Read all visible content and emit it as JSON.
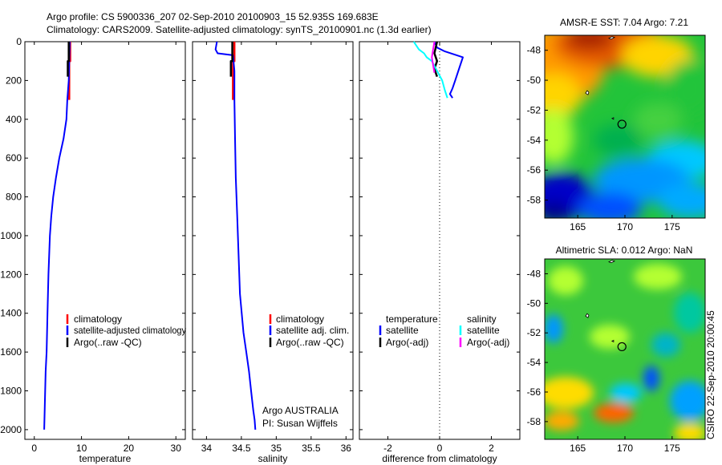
{
  "header": {
    "line1": "Argo profile: CS 5900336_207 02-Sep-2010 20100903_15 52.935S 169.683E",
    "line2": "Climatology: CARS2009. Satellite-adjusted climatology: synTS_20100901.nc (1.3d earlier)"
  },
  "credit": {
    "side_label": "CSIRO 22-Sep-2010 20:00:45",
    "argo_label": "Argo AUSTRALIA",
    "pi_label": "PI: Susan Wijffels"
  },
  "colors": {
    "climatology": "#ff0000",
    "satellite": "#0000ff",
    "argo": "#000000",
    "sat_salinity": "#00ffff",
    "argo_salinity": "#ff00ff"
  },
  "chart_data": [
    {
      "type": "line",
      "title": "",
      "xlabel": "temperature",
      "ylabel": "",
      "xlim": [
        -2,
        32
      ],
      "ylim": [
        2050,
        0
      ],
      "xticks": [
        0,
        10,
        20,
        30
      ],
      "xtick_labels": [
        "0",
        "10",
        "20",
        "30"
      ],
      "yticks": [
        0,
        200,
        400,
        600,
        800,
        1000,
        1200,
        1400,
        1600,
        1800,
        2000
      ],
      "ytick_labels": [
        "0",
        "200",
        "400",
        "600",
        "800",
        "1000",
        "1200",
        "1400",
        "1600",
        "1800",
        "2000"
      ],
      "legend": [
        "climatology",
        "satellite-adjusted climatology",
        "Argo(..raw -QC)"
      ],
      "series": [
        {
          "name": "climatology",
          "x": [
            7.6,
            7.6,
            7.4,
            7.4
          ],
          "y": [
            0,
            100,
            100,
            300
          ]
        },
        {
          "name": "satellite-adjusted climatology",
          "x": [
            7.5,
            7.3,
            7.0,
            6.8,
            6.2,
            5.3,
            4.6,
            4.0,
            3.6,
            3.3,
            3.0,
            2.8,
            2.6,
            2.4,
            2.3,
            2.2,
            2.1
          ],
          "y": [
            0,
            200,
            300,
            400,
            500,
            600,
            700,
            800,
            900,
            1000,
            1200,
            1400,
            1600,
            1700,
            1800,
            1900,
            2000
          ]
        },
        {
          "name": "Argo(..raw -QC)",
          "x": [
            7.3,
            7.3,
            7.1,
            7.1
          ],
          "y": [
            0,
            100,
            100,
            180
          ]
        }
      ]
    },
    {
      "type": "line",
      "title": "",
      "xlabel": "salinity",
      "ylabel": "",
      "xlim": [
        33.8,
        36.1
      ],
      "ylim": [
        2050,
        0
      ],
      "xticks": [
        34,
        34.5,
        35,
        35.5,
        36
      ],
      "xtick_labels": [
        "34",
        "34.5",
        "35",
        "35.5",
        "36"
      ],
      "legend": [
        "climatology",
        "satellite adj. clim.",
        "Argo(..raw -QC)"
      ],
      "series": [
        {
          "name": "climatology",
          "x": [
            34.4,
            34.4,
            34.38,
            34.38
          ],
          "y": [
            0,
            100,
            100,
            300
          ]
        },
        {
          "name": "satellite adj. clim.",
          "x": [
            34.15,
            34.13,
            34.16,
            34.38,
            34.4,
            34.4,
            34.41,
            34.42,
            34.44,
            34.46,
            34.48,
            34.53,
            34.57,
            34.61,
            34.64,
            34.67,
            34.69,
            34.7
          ],
          "y": [
            0,
            40,
            60,
            70,
            150,
            300,
            500,
            700,
            900,
            1100,
            1300,
            1500,
            1600,
            1700,
            1800,
            1900,
            1950,
            2000
          ]
        },
        {
          "name": "Argo(..raw -QC)",
          "x": [
            34.37,
            34.37,
            34.35,
            34.35
          ],
          "y": [
            0,
            100,
            100,
            180
          ]
        }
      ]
    },
    {
      "type": "line",
      "title": "",
      "xlabel": "difference from climatology",
      "ylabel": "",
      "xlim": [
        -3.1,
        3.1
      ],
      "ylim": [
        2050,
        0
      ],
      "xticks": [
        -2,
        0,
        2
      ],
      "xtick_labels": [
        "-2",
        "0",
        "2"
      ],
      "legend": [
        "temperature",
        "satellite",
        "Argo(-adj)",
        "salinity",
        "satellite",
        "Argo(-adj)"
      ],
      "series": [
        {
          "name": "temperature satellite",
          "x": [
            -0.2,
            -0.1,
            0.2,
            0.9,
            0.8,
            0.7,
            0.6,
            0.5,
            0.4,
            0.5
          ],
          "y": [
            0,
            30,
            50,
            80,
            120,
            160,
            200,
            240,
            270,
            290
          ]
        },
        {
          "name": "temperature Argo(-adj)",
          "x": [
            -0.1,
            -0.2,
            -0.1,
            -0.2,
            -0.1
          ],
          "y": [
            0,
            60,
            100,
            140,
            180
          ]
        },
        {
          "name": "salinity satellite",
          "x": [
            -1.0,
            -0.8,
            -0.6,
            -0.5,
            -0.3,
            -0.1,
            0.1,
            0.2,
            0.3
          ],
          "y": [
            0,
            40,
            60,
            80,
            100,
            150,
            200,
            250,
            290
          ]
        },
        {
          "name": "salinity Argo(-adj)",
          "x": [
            -0.2,
            -0.3,
            -0.2
          ],
          "y": [
            0,
            80,
            160
          ]
        }
      ]
    },
    {
      "type": "heatmap",
      "title": "AMSR-E SST: 7.04 Argo: 7.21",
      "xlabel": "",
      "ylabel": "",
      "xlim": [
        161.5,
        178.5
      ],
      "ylim": [
        -59.2,
        -47
      ],
      "xticks": [
        165,
        170,
        175
      ],
      "xtick_labels": [
        "165",
        "170",
        "175"
      ],
      "yticks": [
        -48,
        -50,
        -52,
        -54,
        -56,
        -58
      ],
      "ytick_labels": [
        "-48",
        "-50",
        "-52",
        "-54",
        "-56",
        "-58"
      ],
      "marker": {
        "lon": 169.683,
        "lat": -52.935
      }
    },
    {
      "type": "heatmap",
      "title": "Altimetric SLA: 0.012 Argo: NaN",
      "xlabel": "",
      "ylabel": "",
      "xlim": [
        161.5,
        178.5
      ],
      "ylim": [
        -59.2,
        -47
      ],
      "xticks": [
        165,
        170,
        175
      ],
      "xtick_labels": [
        "165",
        "170",
        "175"
      ],
      "yticks": [
        -48,
        -50,
        -52,
        -54,
        -56,
        -58
      ],
      "ytick_labels": [
        "-48",
        "-50",
        "-52",
        "-54",
        "-56",
        "-58"
      ],
      "marker": {
        "lon": 169.683,
        "lat": -52.935
      }
    }
  ]
}
